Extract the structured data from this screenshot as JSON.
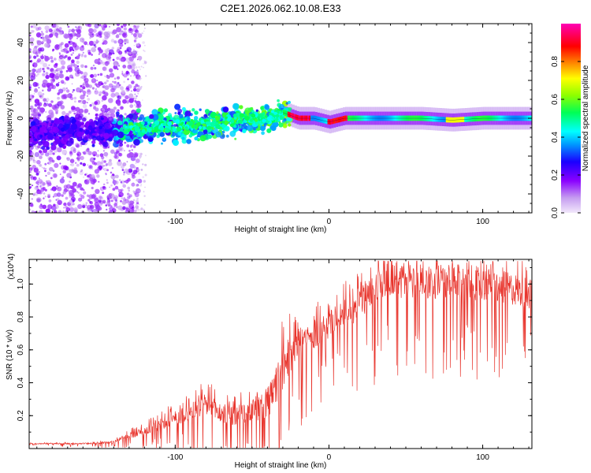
{
  "title": "C2E1.2026.062.10.08.E33",
  "chart_data": [
    {
      "type": "heatmap",
      "title": "C2E1.2026.062.10.08.E33",
      "xlabel": "Height of straight line (km)",
      "ylabel": "Frequency (Hz)",
      "xlim": [
        -195,
        132
      ],
      "ylim": [
        -50,
        50
      ],
      "xticks": [
        -100,
        0,
        100
      ],
      "xtick_labels": [
        "-100",
        "0",
        "100"
      ],
      "yticks": [
        -40,
        -20,
        0,
        20,
        40
      ],
      "ytick_labels": [
        "-40",
        "-20",
        "0",
        "20",
        "40"
      ],
      "colorbar": {
        "label": "Normalized spectral amplitude",
        "range": [
          0,
          1
        ],
        "ticks": [
          0.0,
          0.2,
          0.4,
          0.6,
          0.8
        ],
        "tick_labels": [
          "0.0",
          "0.2",
          "0.4",
          "0.6",
          "0.8"
        ],
        "colors": [
          "#e9d9f7",
          "#8a00ff",
          "#0000ff",
          "#00ffff",
          "#00ff00",
          "#ffff00",
          "#ff0000",
          "#ff00a0"
        ]
      },
      "ridge": {
        "x": [
          -195,
          -140,
          -120,
          -100,
          -80,
          -60,
          -40,
          -30,
          -20,
          -10,
          0,
          10,
          20,
          40,
          60,
          80,
          100,
          120,
          132
        ],
        "center_freq": [
          -8,
          -6,
          -5,
          -4,
          -3,
          -1,
          0,
          3,
          0,
          0,
          -2,
          0,
          0,
          0,
          0,
          -1,
          0,
          0,
          0
        ]
      }
    },
    {
      "type": "line",
      "xlabel": "Height of straight line (km)",
      "ylabel": "SNR (10 * v/v)",
      "y_multiplier": "(x10^4)",
      "xlim": [
        -195,
        132
      ],
      "ylim": [
        0,
        11500
      ],
      "xticks": [
        -100,
        0,
        100
      ],
      "xtick_labels": [
        "-100",
        "0",
        "100"
      ],
      "yticks": [
        2000,
        4000,
        6000,
        8000,
        10000
      ],
      "ytick_labels": [
        "0.2",
        "0.4",
        "0.6",
        "0.8",
        "1.0"
      ],
      "series": [
        {
          "name": "SNR",
          "color": "#e8342c",
          "x": [
            -195,
            -160,
            -140,
            -130,
            -120,
            -110,
            -100,
            -90,
            -80,
            -70,
            -60,
            -50,
            -40,
            -35,
            -30,
            -25,
            -20,
            -15,
            -10,
            -5,
            0,
            5,
            10,
            15,
            20,
            25,
            30,
            40,
            50,
            60,
            70,
            80,
            90,
            100,
            110,
            120,
            132
          ],
          "values": [
            300,
            300,
            400,
            800,
            1100,
            1500,
            1900,
            2300,
            2700,
            2200,
            2000,
            2400,
            2800,
            3800,
            5000,
            6000,
            6500,
            6800,
            7000,
            7300,
            7600,
            8000,
            8400,
            8600,
            8900,
            9500,
            10000,
            10500,
            10300,
            10400,
            10300,
            10200,
            10200,
            10100,
            9900,
            9800,
            9500
          ],
          "spread": [
            50,
            80,
            150,
            350,
            500,
            700,
            900,
            1100,
            1400,
            1300,
            1300,
            1600,
            2000,
            2400,
            2600,
            2400,
            2200,
            2000,
            1800,
            1700,
            1600,
            1700,
            1800,
            1900,
            2000,
            2100,
            2200,
            2300,
            2300,
            2300,
            2200,
            2200,
            2200,
            2100,
            2100,
            2000,
            2000
          ]
        }
      ]
    }
  ]
}
